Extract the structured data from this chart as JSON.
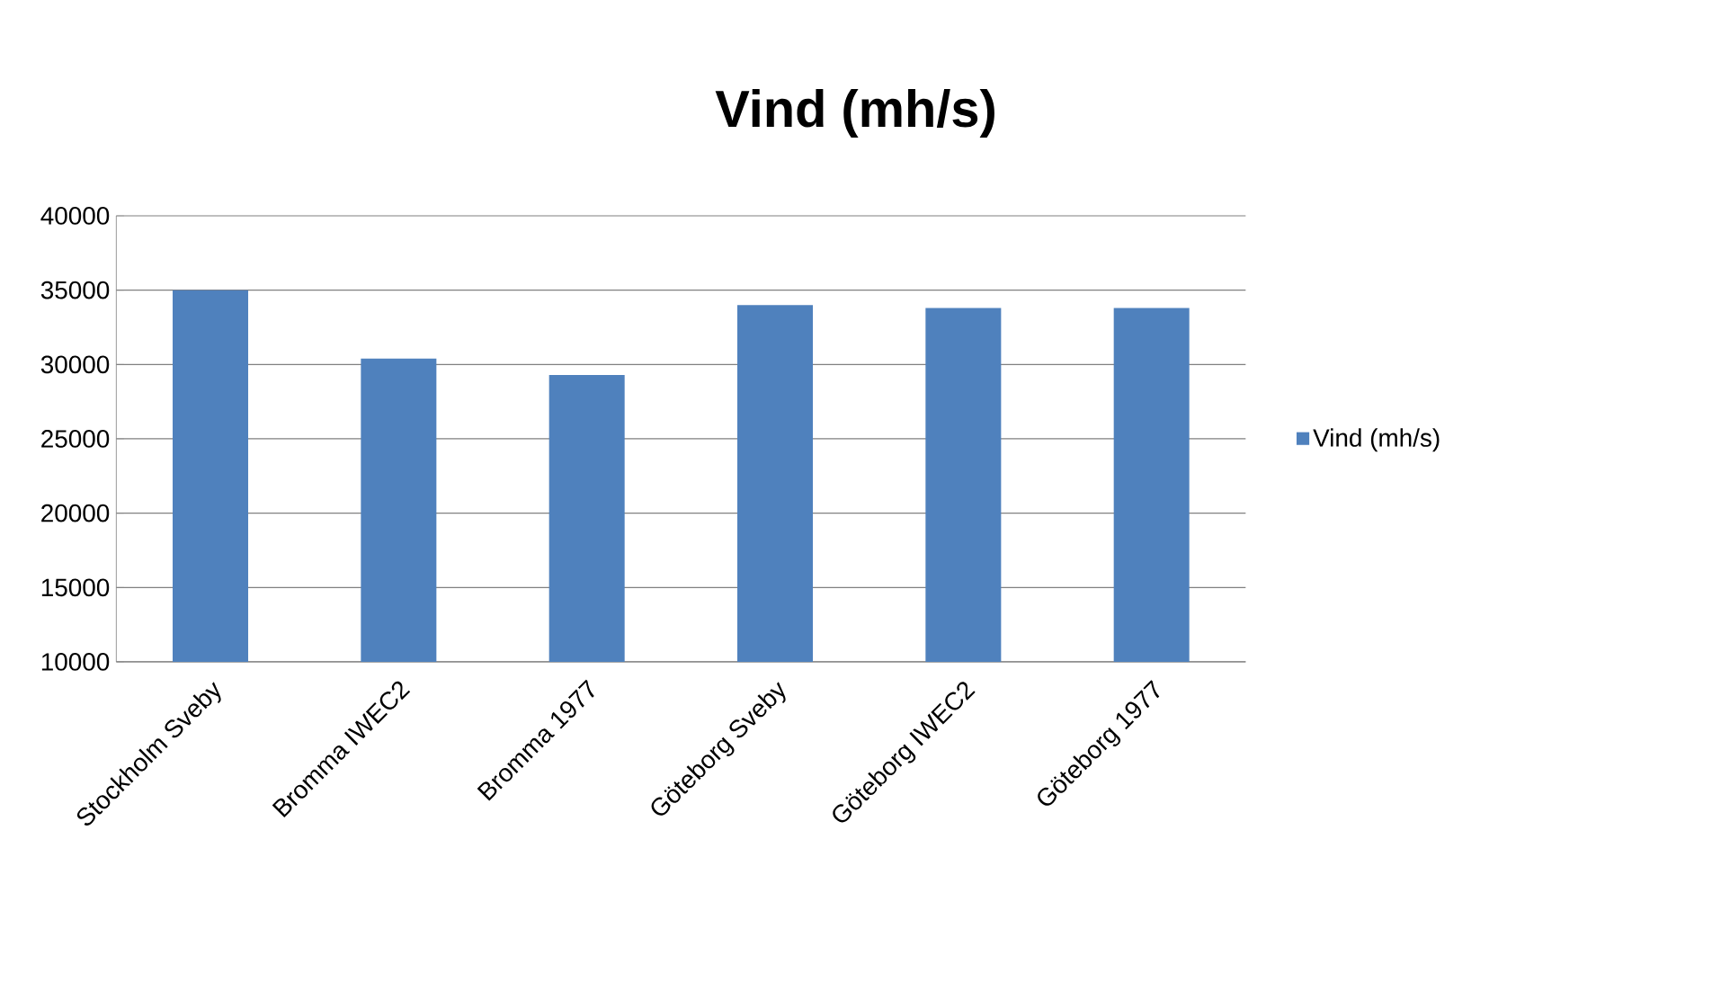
{
  "chart_data": {
    "type": "bar",
    "title": "Vind (mh/s)",
    "categories": [
      "Stockholm Sveby",
      "Bromma IWEC2",
      "Bromma 1977",
      "Göteborg Sveby",
      "Göteborg IWEC2",
      "Göteborg 1977"
    ],
    "series": [
      {
        "name": "Vind (mh/s)",
        "color": "#4f81bd",
        "values": [
          35000,
          30400,
          29300,
          34000,
          33800,
          33800
        ]
      }
    ],
    "ylim": [
      10000,
      40000
    ],
    "yticks": [
      10000,
      15000,
      20000,
      25000,
      30000,
      35000,
      40000
    ],
    "grid": "y",
    "legend": "right"
  }
}
